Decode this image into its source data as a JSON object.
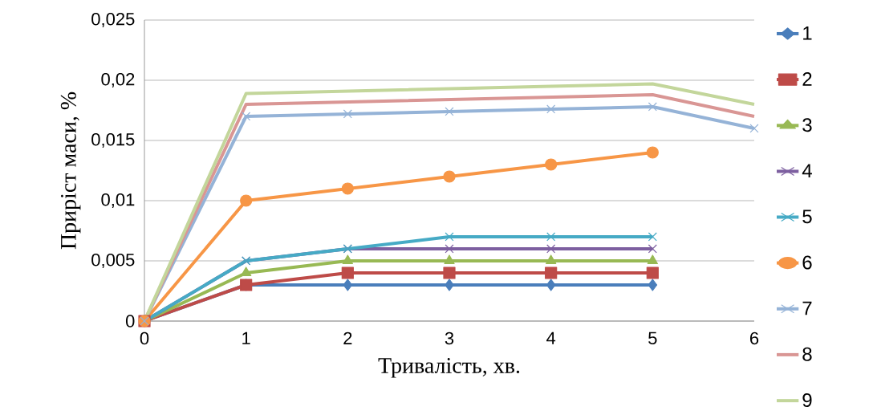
{
  "chart_data": {
    "type": "line",
    "xlabel": "Тривалість, хв.",
    "ylabel": "Приріст маси, %",
    "xlim": [
      0,
      6
    ],
    "xticks": [
      0,
      1,
      2,
      3,
      4,
      5,
      6
    ],
    "ylim": [
      0,
      0.025
    ],
    "yticks": [
      {
        "value": 0,
        "label": "0"
      },
      {
        "value": 0.005,
        "label": "0,005"
      },
      {
        "value": 0.01,
        "label": "0,01"
      },
      {
        "value": 0.015,
        "label": "0,015"
      },
      {
        "value": 0.02,
        "label": "0,02"
      },
      {
        "value": 0.025,
        "label": "0,025"
      }
    ],
    "grid": "y",
    "legend": "right",
    "series": [
      {
        "name": "1",
        "color": "#4a7ebb",
        "marker": "diamond",
        "x": [
          0,
          1,
          2,
          3,
          4,
          5
        ],
        "values": [
          0,
          0.003,
          0.003,
          0.003,
          0.003,
          0.003
        ]
      },
      {
        "name": "2",
        "color": "#be4b48",
        "marker": "square",
        "x": [
          0,
          1,
          2,
          3,
          4,
          5
        ],
        "values": [
          0,
          0.003,
          0.004,
          0.004,
          0.004,
          0.004
        ]
      },
      {
        "name": "3",
        "color": "#98b954",
        "marker": "triangle",
        "x": [
          0,
          1,
          2,
          3,
          4,
          5
        ],
        "values": [
          0,
          0.004,
          0.005,
          0.005,
          0.005,
          0.005
        ]
      },
      {
        "name": "4",
        "color": "#7d5fa0",
        "marker": "cross",
        "x": [
          0,
          1,
          2,
          3,
          4,
          5
        ],
        "values": [
          0,
          0.005,
          0.006,
          0.006,
          0.006,
          0.006
        ]
      },
      {
        "name": "5",
        "color": "#46aac5",
        "marker": "cross",
        "x": [
          0,
          1,
          2,
          3,
          4,
          5
        ],
        "values": [
          0,
          0.005,
          0.006,
          0.007,
          0.007,
          0.007
        ]
      },
      {
        "name": "6",
        "color": "#f79646",
        "marker": "circle",
        "x": [
          0,
          1,
          2,
          3,
          4,
          5
        ],
        "values": [
          0,
          0.01,
          0.011,
          0.012,
          0.013,
          0.014
        ]
      },
      {
        "name": "7",
        "color": "#95b3d7",
        "marker": "cross",
        "x": [
          0,
          1,
          2,
          3,
          4,
          5,
          6
        ],
        "values": [
          0,
          0.017,
          0.0172,
          0.0174,
          0.0176,
          0.0178,
          0.016
        ]
      },
      {
        "name": "8",
        "color": "#d99694",
        "marker": "none",
        "x": [
          0,
          1,
          2,
          3,
          4,
          5,
          6
        ],
        "values": [
          0,
          0.018,
          0.0182,
          0.0184,
          0.0186,
          0.0188,
          0.017
        ]
      },
      {
        "name": "9",
        "color": "#c3d69b",
        "marker": "none",
        "x": [
          0,
          1,
          2,
          3,
          4,
          5,
          6
        ],
        "values": [
          0,
          0.0189,
          0.0191,
          0.0193,
          0.0195,
          0.0197,
          0.018
        ]
      }
    ]
  }
}
